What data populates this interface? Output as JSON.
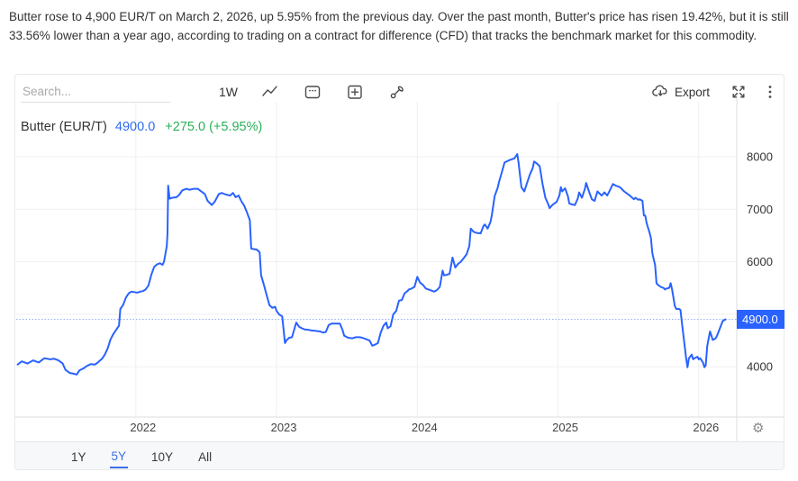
{
  "article": {
    "text": "Butter rose to 4,900 EUR/T on March 2, 2026, up 5.95% from the previous day. Over the past month, Butter's price has risen 19.42%, but it is still 33.56% lower than a year ago, according to trading on a contract for difference (CFD) that tracks the benchmark market for this commodity."
  },
  "toolbar": {
    "search_placeholder": "Search...",
    "interval_label": "1W",
    "export_label": "Export",
    "icons": {
      "chart_type": "line-chart-icon",
      "calendar": "calendar-icon",
      "compare": "add-compare-icon",
      "tools": "wrench-icon",
      "export": "cloud-download-icon",
      "fullscreen": "expand-icon",
      "more": "kebab-menu-icon",
      "settings": "gear-icon"
    }
  },
  "legend": {
    "series_label": "Butter (EUR/T)",
    "price": "4900.0",
    "change": "+275.0 (+5.95%)"
  },
  "price_marker": {
    "value": "4900.0"
  },
  "range_tabs": {
    "items": [
      "1Y",
      "5Y",
      "10Y",
      "All"
    ],
    "active": "5Y"
  },
  "colors": {
    "line": "#2962FF",
    "price_label_bg": "#2962FF",
    "price_text": "#2e6bf0",
    "change_text": "#2ab158",
    "grid": "#f0f0f0",
    "axis": "#dcdcdc",
    "dotted_line": "#8aa9f5"
  },
  "chart_data": {
    "type": "line",
    "title": "Butter (EUR/T)",
    "unit": "EUR/T",
    "interval": "1W",
    "x_ticks": [
      2022,
      2023,
      2024,
      2025,
      2026
    ],
    "y_ticks": [
      4000,
      5000,
      6000,
      7000,
      8000
    ],
    "xlim": [
      2021.15,
      2026.27
    ],
    "ylim": [
      3040,
      8910
    ],
    "grid": true,
    "current_price": 4900,
    "points": [
      [
        2021.16,
        4040
      ],
      [
        2021.19,
        4100
      ],
      [
        2021.23,
        4060
      ],
      [
        2021.27,
        4120
      ],
      [
        2021.31,
        4080
      ],
      [
        2021.35,
        4160
      ],
      [
        2021.39,
        4140
      ],
      [
        2021.42,
        4150
      ],
      [
        2021.45,
        4120
      ],
      [
        2021.48,
        4060
      ],
      [
        2021.5,
        3940
      ],
      [
        2021.53,
        3880
      ],
      [
        2021.55,
        3870
      ],
      [
        2021.58,
        3850
      ],
      [
        2021.6,
        3930
      ],
      [
        2021.63,
        3970
      ],
      [
        2021.65,
        4010
      ],
      [
        2021.68,
        4050
      ],
      [
        2021.71,
        4040
      ],
      [
        2021.73,
        4080
      ],
      [
        2021.76,
        4150
      ],
      [
        2021.78,
        4230
      ],
      [
        2021.8,
        4350
      ],
      [
        2021.82,
        4520
      ],
      [
        2021.84,
        4620
      ],
      [
        2021.86,
        4700
      ],
      [
        2021.88,
        4780
      ],
      [
        2021.89,
        5100
      ],
      [
        2021.91,
        5180
      ],
      [
        2021.93,
        5320
      ],
      [
        2021.95,
        5400
      ],
      [
        2021.97,
        5430
      ],
      [
        2021.99,
        5420
      ],
      [
        2022.01,
        5410
      ],
      [
        2022.03,
        5430
      ],
      [
        2022.05,
        5440
      ],
      [
        2022.07,
        5470
      ],
      [
        2022.09,
        5550
      ],
      [
        2022.11,
        5750
      ],
      [
        2022.13,
        5900
      ],
      [
        2022.15,
        5950
      ],
      [
        2022.17,
        5970
      ],
      [
        2022.19,
        5940
      ],
      [
        2022.2,
        6000
      ],
      [
        2022.22,
        6300
      ],
      [
        2022.225,
        6550
      ],
      [
        2022.23,
        7450
      ],
      [
        2022.24,
        7200
      ],
      [
        2022.26,
        7220
      ],
      [
        2022.29,
        7230
      ],
      [
        2022.31,
        7280
      ],
      [
        2022.33,
        7360
      ],
      [
        2022.36,
        7390
      ],
      [
        2022.38,
        7370
      ],
      [
        2022.41,
        7390
      ],
      [
        2022.44,
        7390
      ],
      [
        2022.46,
        7350
      ],
      [
        2022.49,
        7290
      ],
      [
        2022.51,
        7160
      ],
      [
        2022.54,
        7080
      ],
      [
        2022.56,
        7140
      ],
      [
        2022.59,
        7290
      ],
      [
        2022.61,
        7310
      ],
      [
        2022.64,
        7280
      ],
      [
        2022.67,
        7260
      ],
      [
        2022.69,
        7310
      ],
      [
        2022.71,
        7230
      ],
      [
        2022.73,
        7260
      ],
      [
        2022.75,
        7150
      ],
      [
        2022.77,
        7070
      ],
      [
        2022.79,
        6940
      ],
      [
        2022.81,
        6790
      ],
      [
        2022.82,
        6250
      ],
      [
        2022.84,
        6240
      ],
      [
        2022.86,
        6230
      ],
      [
        2022.88,
        6180
      ],
      [
        2022.89,
        5740
      ],
      [
        2022.91,
        5560
      ],
      [
        2022.93,
        5360
      ],
      [
        2022.95,
        5170
      ],
      [
        2022.97,
        5120
      ],
      [
        2022.99,
        5140
      ],
      [
        2023.0,
        5060
      ],
      [
        2023.02,
        4990
      ],
      [
        2023.04,
        4960
      ],
      [
        2023.06,
        4450
      ],
      [
        2023.07,
        4500
      ],
      [
        2023.09,
        4550
      ],
      [
        2023.11,
        4560
      ],
      [
        2023.14,
        4840
      ],
      [
        2023.16,
        4760
      ],
      [
        2023.18,
        4730
      ],
      [
        2023.2,
        4710
      ],
      [
        2023.23,
        4700
      ],
      [
        2023.25,
        4690
      ],
      [
        2023.28,
        4680
      ],
      [
        2023.31,
        4670
      ],
      [
        2023.33,
        4650
      ],
      [
        2023.35,
        4660
      ],
      [
        2023.37,
        4790
      ],
      [
        2023.39,
        4820
      ],
      [
        2023.42,
        4820
      ],
      [
        2023.45,
        4820
      ],
      [
        2023.47,
        4690
      ],
      [
        2023.48,
        4590
      ],
      [
        2023.51,
        4550
      ],
      [
        2023.54,
        4540
      ],
      [
        2023.56,
        4560
      ],
      [
        2023.59,
        4560
      ],
      [
        2023.61,
        4550
      ],
      [
        2023.64,
        4520
      ],
      [
        2023.66,
        4500
      ],
      [
        2023.68,
        4400
      ],
      [
        2023.7,
        4420
      ],
      [
        2023.72,
        4450
      ],
      [
        2023.74,
        4650
      ],
      [
        2023.76,
        4780
      ],
      [
        2023.78,
        4840
      ],
      [
        2023.79,
        4730
      ],
      [
        2023.81,
        4770
      ],
      [
        2023.83,
        5000
      ],
      [
        2023.85,
        5060
      ],
      [
        2023.87,
        5260
      ],
      [
        2023.89,
        5270
      ],
      [
        2023.91,
        5400
      ],
      [
        2023.93,
        5440
      ],
      [
        2023.94,
        5470
      ],
      [
        2023.96,
        5490
      ],
      [
        2023.98,
        5520
      ],
      [
        2024.0,
        5710
      ],
      [
        2024.02,
        5600
      ],
      [
        2024.04,
        5560
      ],
      [
        2024.06,
        5490
      ],
      [
        2024.08,
        5470
      ],
      [
        2024.1,
        5450
      ],
      [
        2024.12,
        5430
      ],
      [
        2024.14,
        5460
      ],
      [
        2024.16,
        5520
      ],
      [
        2024.18,
        5830
      ],
      [
        2024.19,
        5740
      ],
      [
        2024.21,
        5750
      ],
      [
        2024.23,
        5770
      ],
      [
        2024.25,
        6080
      ],
      [
        2024.27,
        5890
      ],
      [
        2024.29,
        5960
      ],
      [
        2024.31,
        6000
      ],
      [
        2024.33,
        6070
      ],
      [
        2024.35,
        6140
      ],
      [
        2024.37,
        6300
      ],
      [
        2024.38,
        6630
      ],
      [
        2024.4,
        6570
      ],
      [
        2024.42,
        6550
      ],
      [
        2024.45,
        6540
      ],
      [
        2024.47,
        6680
      ],
      [
        2024.48,
        6710
      ],
      [
        2024.5,
        6630
      ],
      [
        2024.52,
        6760
      ],
      [
        2024.53,
        6890
      ],
      [
        2024.55,
        7250
      ],
      [
        2024.57,
        7400
      ],
      [
        2024.58,
        7510
      ],
      [
        2024.6,
        7700
      ],
      [
        2024.62,
        7890
      ],
      [
        2024.65,
        7930
      ],
      [
        2024.67,
        7950
      ],
      [
        2024.69,
        7970
      ],
      [
        2024.71,
        8050
      ],
      [
        2024.72,
        7880
      ],
      [
        2024.74,
        7420
      ],
      [
        2024.76,
        7340
      ],
      [
        2024.78,
        7500
      ],
      [
        2024.8,
        7660
      ],
      [
        2024.82,
        7780
      ],
      [
        2024.83,
        7910
      ],
      [
        2024.85,
        7870
      ],
      [
        2024.87,
        7820
      ],
      [
        2024.89,
        7480
      ],
      [
        2024.91,
        7220
      ],
      [
        2024.93,
        7100
      ],
      [
        2024.94,
        7020
      ],
      [
        2024.96,
        7080
      ],
      [
        2024.99,
        7140
      ],
      [
        2025.01,
        7260
      ],
      [
        2025.02,
        7420
      ],
      [
        2025.03,
        7340
      ],
      [
        2025.05,
        7400
      ],
      [
        2025.07,
        7250
      ],
      [
        2025.08,
        7110
      ],
      [
        2025.1,
        7090
      ],
      [
        2025.12,
        7080
      ],
      [
        2025.14,
        7200
      ],
      [
        2025.15,
        7320
      ],
      [
        2025.17,
        7220
      ],
      [
        2025.19,
        7380
      ],
      [
        2025.2,
        7500
      ],
      [
        2025.22,
        7340
      ],
      [
        2025.24,
        7190
      ],
      [
        2025.26,
        7160
      ],
      [
        2025.28,
        7340
      ],
      [
        2025.31,
        7260
      ],
      [
        2025.33,
        7320
      ],
      [
        2025.35,
        7260
      ],
      [
        2025.37,
        7370
      ],
      [
        2025.39,
        7480
      ],
      [
        2025.41,
        7450
      ],
      [
        2025.44,
        7420
      ],
      [
        2025.47,
        7340
      ],
      [
        2025.51,
        7260
      ],
      [
        2025.54,
        7190
      ],
      [
        2025.55,
        7220
      ],
      [
        2025.57,
        7180
      ],
      [
        2025.58,
        7190
      ],
      [
        2025.6,
        7160
      ],
      [
        2025.61,
        6880
      ],
      [
        2025.62,
        6880
      ],
      [
        2025.63,
        6730
      ],
      [
        2025.65,
        6560
      ],
      [
        2025.66,
        6450
      ],
      [
        2025.67,
        6160
      ],
      [
        2025.69,
        5930
      ],
      [
        2025.7,
        5590
      ],
      [
        2025.71,
        5560
      ],
      [
        2025.73,
        5520
      ],
      [
        2025.75,
        5500
      ],
      [
        2025.76,
        5470
      ],
      [
        2025.77,
        5490
      ],
      [
        2025.79,
        5500
      ],
      [
        2025.8,
        5590
      ],
      [
        2025.81,
        5480
      ],
      [
        2025.83,
        5160
      ],
      [
        2025.84,
        5100
      ],
      [
        2025.86,
        5100
      ],
      [
        2025.87,
        5080
      ],
      [
        2025.88,
        4840
      ],
      [
        2025.9,
        4390
      ],
      [
        2025.91,
        4160
      ],
      [
        2025.92,
        3990
      ],
      [
        2025.93,
        4160
      ],
      [
        2025.95,
        4230
      ],
      [
        2025.96,
        4140
      ],
      [
        2025.97,
        4160
      ],
      [
        2025.99,
        4190
      ],
      [
        2026.0,
        4140
      ],
      [
        2026.01,
        4160
      ],
      [
        2026.03,
        4080
      ],
      [
        2026.04,
        3990
      ],
      [
        2026.05,
        4030
      ],
      [
        2026.06,
        4390
      ],
      [
        2026.08,
        4670
      ],
      [
        2026.09,
        4590
      ],
      [
        2026.1,
        4510
      ],
      [
        2026.12,
        4540
      ],
      [
        2026.13,
        4590
      ],
      [
        2026.15,
        4730
      ],
      [
        2026.17,
        4870
      ],
      [
        2026.19,
        4900
      ]
    ]
  }
}
